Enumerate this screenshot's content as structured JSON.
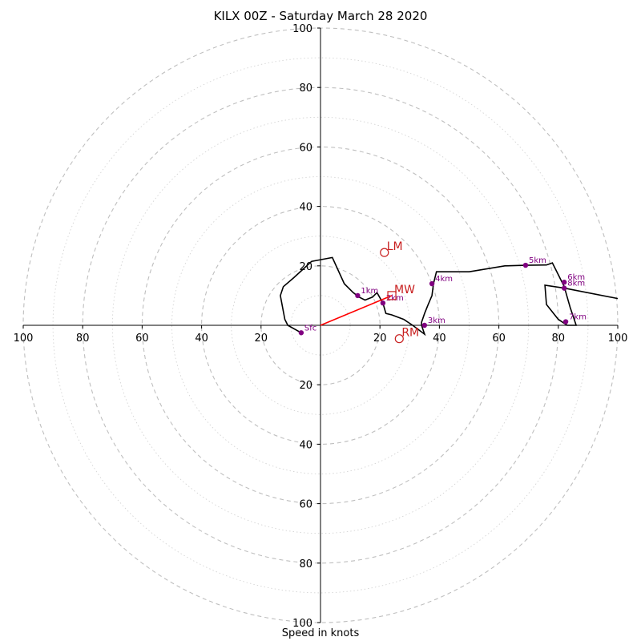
{
  "chart_data": {
    "type": "hodograph",
    "title": "KILX 00Z - Saturday March 28 2020",
    "xlabel": "Speed in knots",
    "rings": [
      10,
      20,
      30,
      40,
      50,
      60,
      70,
      80,
      90,
      100
    ],
    "labeled_rings": [
      20,
      40,
      60,
      80,
      100
    ],
    "range": [
      -100,
      100
    ],
    "hodograph": [
      [
        -6.5,
        -2.5
      ],
      [
        -11,
        0
      ],
      [
        -12,
        2
      ],
      [
        -13.5,
        10
      ],
      [
        -12.5,
        13
      ],
      [
        -9,
        16
      ],
      [
        -3,
        21.5
      ],
      [
        4,
        22.8
      ],
      [
        8,
        14
      ],
      [
        11,
        11
      ],
      [
        13,
        9.5
      ],
      [
        15,
        8.5
      ],
      [
        17.5,
        9.5
      ],
      [
        19,
        11
      ],
      [
        21,
        7.5
      ],
      [
        22,
        4
      ],
      [
        24,
        3.5
      ],
      [
        28,
        2
      ],
      [
        31,
        0
      ],
      [
        35,
        -3
      ],
      [
        34,
        0
      ],
      [
        34,
        1
      ],
      [
        35,
        4
      ],
      [
        36,
        6.5
      ],
      [
        37.5,
        10
      ],
      [
        38,
        14
      ],
      [
        39,
        18
      ],
      [
        50,
        18
      ],
      [
        62,
        20
      ],
      [
        69,
        20.2
      ],
      [
        76,
        20.3
      ],
      [
        78,
        21
      ],
      [
        80,
        17
      ],
      [
        82,
        13
      ],
      [
        83,
        9.5
      ],
      [
        84,
        6
      ],
      [
        85,
        3
      ],
      [
        86,
        0
      ],
      [
        83,
        0
      ],
      [
        80,
        2
      ],
      [
        76,
        7
      ],
      [
        75.5,
        13.5
      ],
      [
        82,
        12.5
      ],
      [
        100,
        9
      ]
    ],
    "height_markers": [
      {
        "label": "Sfc",
        "u": -6.5,
        "v": -2.5
      },
      {
        "label": "1km",
        "u": 12.5,
        "v": 10
      },
      {
        "label": "2km",
        "u": 21,
        "v": 7.5
      },
      {
        "label": "3km",
        "u": 35,
        "v": 0
      },
      {
        "label": "4km",
        "u": 37.5,
        "v": 14
      },
      {
        "label": "5km",
        "u": 69,
        "v": 20.2
      },
      {
        "label": "6km",
        "u": 82,
        "v": 14.5
      },
      {
        "label": "8km",
        "u": 82,
        "v": 12.5
      },
      {
        "label": "7km",
        "u": 82.5,
        "v": 1.2
      }
    ],
    "storm_motion": {
      "LM": {
        "u": 21.5,
        "v": 24.5
      },
      "MW": {
        "u": 24,
        "v": 10
      },
      "RM": {
        "u": 26.5,
        "v": -4.5
      }
    },
    "colors": {
      "hodograph": "#000000",
      "markers": "#800080",
      "storm": "#c81e1e",
      "shear": "#ff0000",
      "grid": "#bfbfbf"
    }
  }
}
